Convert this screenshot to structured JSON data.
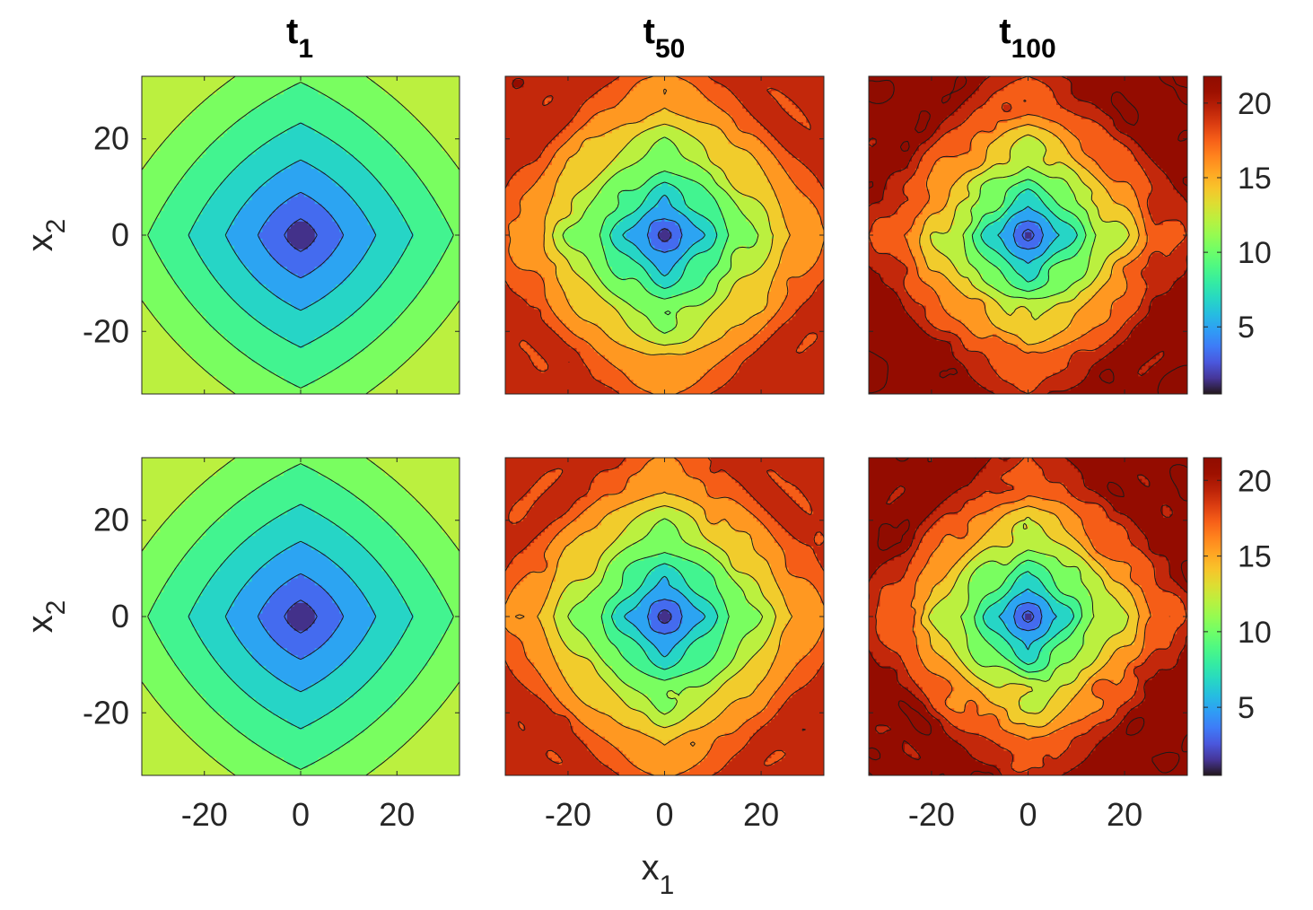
{
  "figure": {
    "colormap": "turbo",
    "panel_titles": [
      {
        "main": "t",
        "sub": "1"
      },
      {
        "main": "t",
        "sub": "50"
      },
      {
        "main": "t",
        "sub": "100"
      }
    ],
    "xlabel": {
      "main": "x",
      "sub": "1"
    },
    "ylabel": {
      "main": "x",
      "sub": "2"
    }
  },
  "chart_data": [
    {
      "type": "heatmap",
      "subtype": "filled-contour",
      "row": 1,
      "column": 1,
      "title": "t_1",
      "xlim": [
        -33,
        33
      ],
      "ylim": [
        -33,
        33
      ],
      "xticks": [
        "-20",
        "0",
        "20"
      ],
      "yticks": [
        "20",
        "0",
        "-20"
      ],
      "center_value": 0.5,
      "edge_value": 10.5,
      "corner_value": 11.5,
      "rings": 0,
      "ring_amp": 0,
      "seed": 1
    },
    {
      "type": "heatmap",
      "subtype": "filled-contour",
      "row": 1,
      "column": 2,
      "title": "t_50",
      "xlim": [
        -33,
        33
      ],
      "ylim": [
        -33,
        33
      ],
      "xticks": [
        "-20",
        "0",
        "20"
      ],
      "yticks": [
        "20",
        "0",
        "-20"
      ],
      "center_value": 0.5,
      "edge_value": 18,
      "corner_value": 19,
      "rings": 6,
      "ring_amp": 1.1,
      "seed": 2
    },
    {
      "type": "heatmap",
      "subtype": "filled-contour",
      "row": 1,
      "column": 3,
      "title": "t_100",
      "xlim": [
        -33,
        33
      ],
      "ylim": [
        -33,
        33
      ],
      "xticks": [
        "-20",
        "0",
        "20"
      ],
      "yticks": [
        "20",
        "0",
        "-20"
      ],
      "center_value": 0.5,
      "edge_value": 20.5,
      "corner_value": 21,
      "rings": 9,
      "ring_amp": 1.3,
      "seed": 3
    },
    {
      "type": "heatmap",
      "subtype": "filled-contour",
      "row": 2,
      "column": 1,
      "xlim": [
        -33,
        33
      ],
      "ylim": [
        -33,
        33
      ],
      "xticks": [
        "-20",
        "0",
        "20"
      ],
      "yticks": [
        "20",
        "0",
        "-20"
      ],
      "center_value": 0.5,
      "edge_value": 10.5,
      "corner_value": 11.5,
      "rings": 0,
      "ring_amp": 0,
      "seed": 4
    },
    {
      "type": "heatmap",
      "subtype": "filled-contour",
      "row": 2,
      "column": 2,
      "xlim": [
        -33,
        33
      ],
      "ylim": [
        -33,
        33
      ],
      "xticks": [
        "-20",
        "0",
        "20"
      ],
      "yticks": [
        "20",
        "0",
        "-20"
      ],
      "center_value": 0.5,
      "edge_value": 18,
      "corner_value": 19,
      "rings": 6,
      "ring_amp": 1.1,
      "seed": 5
    },
    {
      "type": "heatmap",
      "subtype": "filled-contour",
      "row": 2,
      "column": 3,
      "xlim": [
        -33,
        33
      ],
      "ylim": [
        -33,
        33
      ],
      "xticks": [
        "-20",
        "0",
        "20"
      ],
      "yticks": [
        "20",
        "0",
        "-20"
      ],
      "center_value": 0.5,
      "edge_value": 20.5,
      "corner_value": 21,
      "rings": 9,
      "ring_amp": 1.4,
      "seed": 6
    }
  ],
  "colorbars": [
    {
      "row": 1,
      "range": [
        0.5,
        21.8
      ],
      "ticks": [
        5,
        10,
        15,
        20
      ],
      "tick_labels": [
        "5",
        "10",
        "15",
        "20"
      ]
    },
    {
      "row": 2,
      "range": [
        0.5,
        21.5
      ],
      "ticks": [
        5,
        10,
        15,
        20
      ],
      "tick_labels": [
        "5",
        "10",
        "15",
        "20"
      ]
    }
  ]
}
